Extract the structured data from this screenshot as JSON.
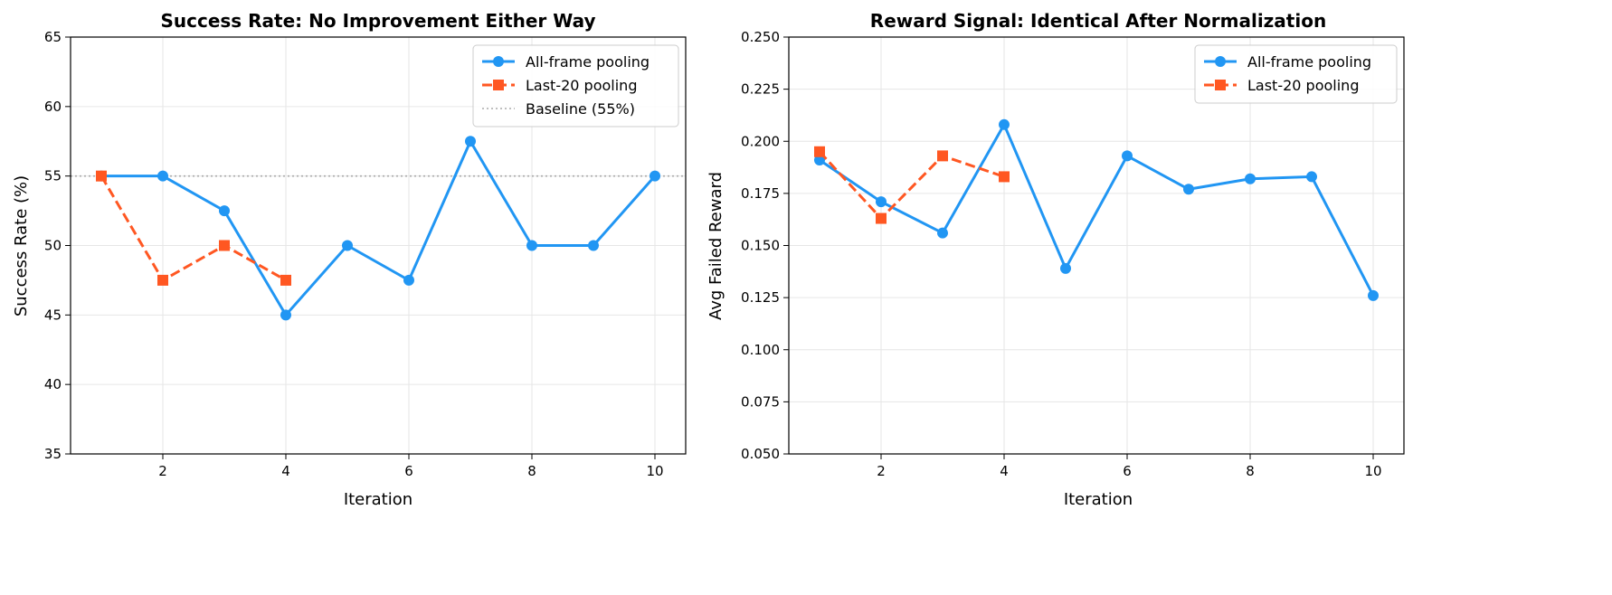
{
  "chart_data": [
    {
      "type": "line",
      "title": "Success Rate: No Improvement Either Way",
      "xlabel": "Iteration",
      "ylabel": "Success Rate (%)",
      "xlim": [
        0.5,
        10.5
      ],
      "ylim": [
        35,
        65
      ],
      "xticks": [
        2,
        4,
        6,
        8,
        10
      ],
      "yticks": [
        35,
        40,
        45,
        50,
        55,
        60,
        65
      ],
      "ytick_decimals": 0,
      "grid": true,
      "legend_position": "top-right",
      "series": [
        {
          "name": "All-frame pooling",
          "color": "#2196F3",
          "marker": "circle",
          "linestyle": "solid",
          "x": [
            1,
            2,
            3,
            4,
            5,
            6,
            7,
            8,
            9,
            10
          ],
          "y": [
            55,
            55,
            52.5,
            45,
            50,
            47.5,
            57.5,
            50,
            50,
            55
          ]
        },
        {
          "name": "Last-20 pooling",
          "color": "#FF5722",
          "marker": "square",
          "linestyle": "dashed",
          "x": [
            1,
            2,
            3,
            4
          ],
          "y": [
            55,
            47.5,
            50,
            47.5
          ]
        }
      ],
      "hlines": [
        {
          "name": "Baseline (55%)",
          "y": 55,
          "color": "#aaaaaa",
          "linestyle": "dotted"
        }
      ]
    },
    {
      "type": "line",
      "title": "Reward Signal: Identical After Normalization",
      "xlabel": "Iteration",
      "ylabel": "Avg Failed Reward",
      "xlim": [
        0.5,
        10.5
      ],
      "ylim": [
        0.05,
        0.25
      ],
      "xticks": [
        2,
        4,
        6,
        8,
        10
      ],
      "yticks": [
        0.05,
        0.075,
        0.1,
        0.125,
        0.15,
        0.175,
        0.2,
        0.225,
        0.25
      ],
      "ytick_decimals": 3,
      "grid": true,
      "legend_position": "top-right",
      "series": [
        {
          "name": "All-frame pooling",
          "color": "#2196F3",
          "marker": "circle",
          "linestyle": "solid",
          "x": [
            1,
            2,
            3,
            4,
            5,
            6,
            7,
            8,
            9,
            10
          ],
          "y": [
            0.191,
            0.171,
            0.156,
            0.208,
            0.139,
            0.193,
            0.177,
            0.182,
            0.183,
            0.126
          ]
        },
        {
          "name": "Last-20 pooling",
          "color": "#FF5722",
          "marker": "square",
          "linestyle": "dashed",
          "x": [
            1,
            2,
            3,
            4
          ],
          "y": [
            0.195,
            0.163,
            0.193,
            0.183
          ]
        }
      ],
      "hlines": []
    }
  ]
}
